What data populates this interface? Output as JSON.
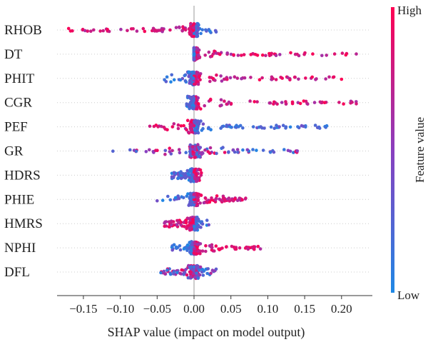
{
  "chart_data": {
    "type": "scatter",
    "subtype": "shap-beeswarm-summary",
    "xlabel": "SHAP value (impact on model output)",
    "xlim": [
      -0.185,
      0.235
    ],
    "x_ticks": [
      -0.15,
      -0.1,
      -0.05,
      0.0,
      0.05,
      0.1,
      0.15,
      0.2
    ],
    "x_tick_labels": [
      "−0.15",
      "−0.10",
      "−0.05",
      "0.00",
      "0.05",
      "0.10",
      "0.15",
      "0.20"
    ],
    "colorbar": {
      "title": "Feature value",
      "high_label": "High",
      "low_label": "Low",
      "high_color": "#ff0052",
      "low_color": "#1e88e5"
    },
    "features": [
      {
        "name": "RHOB",
        "min": -0.17,
        "max": 0.03,
        "high_side": "negative"
      },
      {
        "name": "DT",
        "min": 0.0,
        "max": 0.22,
        "high_side": "positive"
      },
      {
        "name": "PHIT",
        "min": -0.04,
        "max": 0.2,
        "high_side": "positive"
      },
      {
        "name": "CGR",
        "min": -0.01,
        "max": 0.22,
        "high_side": "positive"
      },
      {
        "name": "PEF",
        "min": -0.06,
        "max": 0.18,
        "high_side": "negative"
      },
      {
        "name": "GR",
        "min": -0.11,
        "max": 0.14,
        "high_side": "mixed"
      },
      {
        "name": "HDRS",
        "min": -0.03,
        "max": 0.01,
        "high_side": "positive"
      },
      {
        "name": "PHIE",
        "min": -0.05,
        "max": 0.07,
        "high_side": "positive"
      },
      {
        "name": "HMRS",
        "min": -0.04,
        "max": 0.02,
        "high_side": "negative"
      },
      {
        "name": "NPHI",
        "min": -0.03,
        "max": 0.09,
        "high_side": "positive"
      },
      {
        "name": "DFL",
        "min": -0.045,
        "max": 0.03,
        "high_side": "mixed"
      }
    ]
  }
}
